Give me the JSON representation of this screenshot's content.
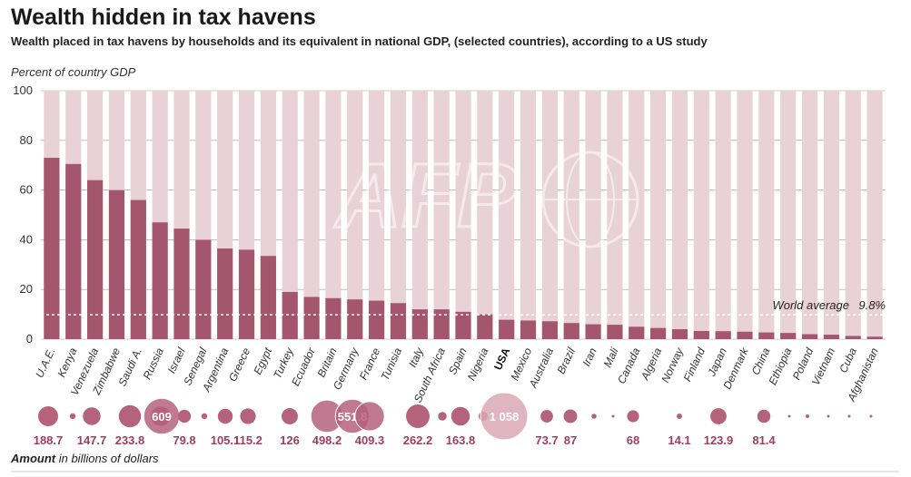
{
  "title": "Wealth hidden in tax havens",
  "subtitle": "Wealth placed in tax havens by households and its equivalent in national GDP, (selected countries), according to a US study",
  "chart_data": {
    "type": "bar",
    "ylabel": "Percent of country GDP",
    "ylim": [
      0,
      100
    ],
    "yticks": [
      0,
      20,
      40,
      60,
      80,
      100
    ],
    "categories": [
      "U.A.E.",
      "Kenya",
      "Venezuela",
      "Zimbabwe",
      "Saudi A.",
      "Russia",
      "Israel",
      "Senegal",
      "Argentina",
      "Greece",
      "Egypt",
      "Turkey",
      "Ecuador",
      "Britain",
      "Germany",
      "France",
      "Tunisia",
      "Italy",
      "South Africa",
      "Spain",
      "Nigeria",
      "USA",
      "Mexico",
      "Australia",
      "Brazil",
      "Iran",
      "Mali",
      "Canada",
      "Algeria",
      "Norway",
      "Finland",
      "Japan",
      "Denmark",
      "China",
      "Ethiopia",
      "Poland",
      "Vietnam",
      "Cuba",
      "Afghanistan"
    ],
    "highlight_category": "USA",
    "values": [
      73,
      70.5,
      64,
      60,
      56,
      47,
      44.5,
      40,
      36.5,
      36,
      33.5,
      19,
      17,
      16.5,
      16,
      15.5,
      14.5,
      12,
      12,
      11,
      10,
      7.8,
      7.5,
      7.2,
      6.5,
      6,
      5.8,
      5,
      4.5,
      4,
      3.3,
      3.2,
      3,
      2.7,
      2.5,
      2,
      1.8,
      1.3,
      1
    ],
    "reference_line": {
      "label": "World average",
      "value": 9.8,
      "value_label": "9.8%"
    },
    "bubble_label_bold": "Amount",
    "bubble_label_rest": " in billions of dollars",
    "amounts": [
      188.7,
      16,
      147.7,
      233.8,
      180,
      609,
      79.8,
      16,
      105.1,
      115.2,
      126,
      498.2,
      551.8,
      409.3,
      262.2,
      35,
      163.8,
      40,
      1058,
      73.7,
      87,
      12,
      68,
      14.1,
      123.9,
      81.4,
      3
    ],
    "amount_labels": [
      "188.7",
      "",
      "147.7",
      "233.8",
      "",
      "609",
      "79.8",
      "",
      "105.1",
      "115.2",
      "126",
      "498.2",
      "551.8",
      "409.3",
      "262.2",
      "",
      "163.8",
      "",
      "1 058",
      "73.7",
      "87",
      "",
      "68",
      "14.1",
      "123.9",
      "81.4",
      ""
    ],
    "colors": {
      "bar": "#a3566e",
      "bar_background": "#e8d2d8",
      "bubble": "#b5627c",
      "amount_text": "#9b3f5f",
      "usa_bubble": "#dba8b7"
    }
  },
  "watermark": "AFP"
}
